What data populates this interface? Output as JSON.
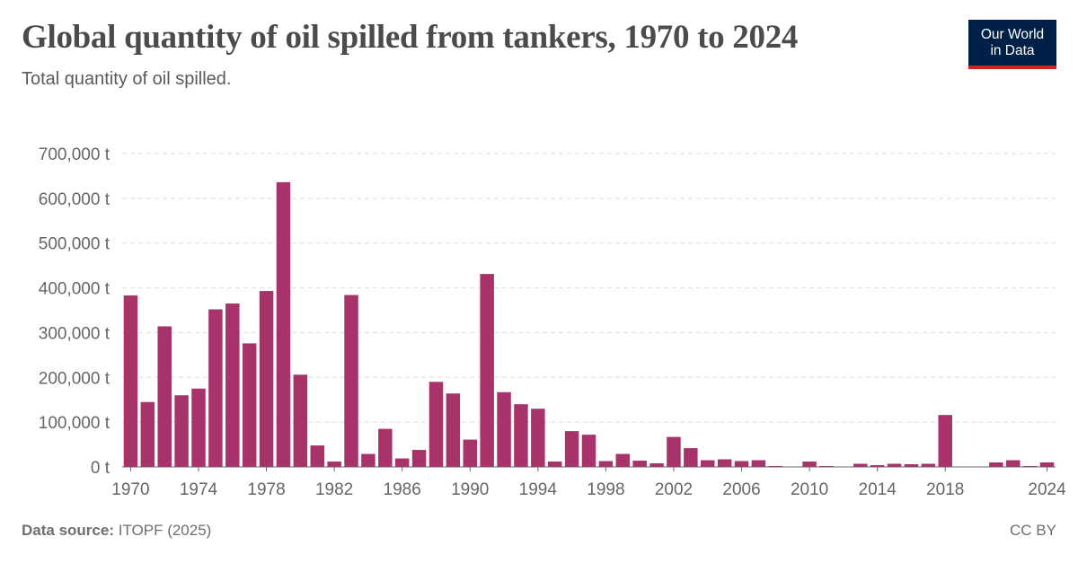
{
  "header": {
    "title": "Global quantity of oil spilled from tankers, 1970 to 2024",
    "subtitle": "Total quantity of oil spilled."
  },
  "logo": {
    "line1": "Our World",
    "line2": "in Data"
  },
  "footer": {
    "source_label": "Data source:",
    "source_value": "ITOPF (2025)",
    "license": "CC BY"
  },
  "colors": {
    "bar": "#a8336a",
    "grid": "#dddddd",
    "axis": "#666666",
    "tick_text": "#666666"
  },
  "chart_data": {
    "type": "bar",
    "x": [
      1970,
      1971,
      1972,
      1973,
      1974,
      1975,
      1976,
      1977,
      1978,
      1979,
      1980,
      1981,
      1982,
      1983,
      1984,
      1985,
      1986,
      1987,
      1988,
      1989,
      1990,
      1991,
      1992,
      1993,
      1994,
      1995,
      1996,
      1997,
      1998,
      1999,
      2000,
      2001,
      2002,
      2003,
      2004,
      2005,
      2006,
      2007,
      2008,
      2009,
      2010,
      2011,
      2012,
      2013,
      2014,
      2015,
      2016,
      2017,
      2018,
      2019,
      2020,
      2021,
      2022,
      2023,
      2024
    ],
    "values": [
      383000,
      145000,
      314000,
      160000,
      175000,
      352000,
      365000,
      276000,
      393000,
      636000,
      206000,
      48000,
      12000,
      384000,
      29000,
      85000,
      19000,
      38000,
      190000,
      164000,
      61000,
      431000,
      167000,
      140000,
      130000,
      12000,
      80000,
      72000,
      13000,
      29000,
      14000,
      8000,
      67000,
      42000,
      15000,
      17000,
      13000,
      15000,
      2000,
      1000,
      12000,
      2000,
      1000,
      7000,
      4000,
      7000,
      6000,
      7000,
      116000,
      1000,
      1000,
      10000,
      15000,
      2000,
      10000
    ],
    "ylim": [
      0,
      700000
    ],
    "y_ticks": [
      0,
      100000,
      200000,
      300000,
      400000,
      500000,
      600000,
      700000
    ],
    "y_tick_labels": [
      "0 t",
      "100,000 t",
      "200,000 t",
      "300,000 t",
      "400,000 t",
      "500,000 t",
      "600,000 t",
      "700,000 t"
    ],
    "x_tick_labels": [
      "1970",
      "1974",
      "1978",
      "1982",
      "1986",
      "1990",
      "1994",
      "1998",
      "2002",
      "2006",
      "2010",
      "2014",
      "2018",
      "2024"
    ],
    "grid": "horizontal dashed",
    "unit": "t"
  }
}
